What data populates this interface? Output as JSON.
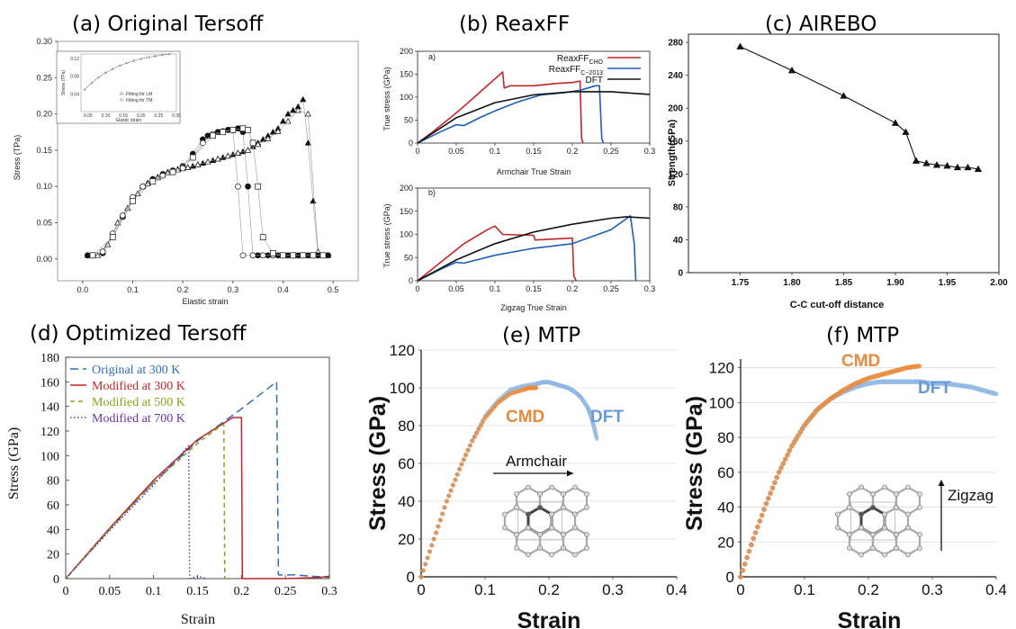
{
  "chart_data": [
    {
      "id": "a",
      "type": "scatter",
      "title": "(a) Original Tersoff",
      "xlabel": "Elastic strain",
      "ylabel": "Stress (TPa)",
      "xlim": [
        -0.05,
        0.55
      ],
      "ylim": [
        -0.03,
        0.3
      ],
      "xticks": [
        "0.0",
        "0.1",
        "0.2",
        "0.3",
        "0.4",
        "0.5"
      ],
      "yticks": [
        "0.00",
        "0.05",
        "0.10",
        "0.15",
        "0.20",
        "0.25",
        "0.30"
      ],
      "series": [
        {
          "marker": "filled-triangle",
          "x": [
            0.01,
            0.02,
            0.03,
            0.04,
            0.05,
            0.06,
            0.07,
            0.08,
            0.09,
            0.1,
            0.11,
            0.12,
            0.13,
            0.14,
            0.15,
            0.16,
            0.17,
            0.18,
            0.19,
            0.2,
            0.21,
            0.22,
            0.23,
            0.24,
            0.25,
            0.26,
            0.27,
            0.28,
            0.29,
            0.3,
            0.31,
            0.32,
            0.33,
            0.34,
            0.35,
            0.36,
            0.37,
            0.38,
            0.39,
            0.4,
            0.41,
            0.42,
            0.43,
            0.44,
            0.45,
            0.46,
            0.47,
            0.48,
            0.49
          ],
          "y": [
            0.005,
            0.005,
            0.005,
            0.01,
            0.02,
            0.035,
            0.05,
            0.06,
            0.07,
            0.08,
            0.09,
            0.1,
            0.105,
            0.11,
            0.113,
            0.116,
            0.12,
            0.122,
            0.124,
            0.125,
            0.126,
            0.128,
            0.13,
            0.132,
            0.134,
            0.136,
            0.138,
            0.14,
            0.142,
            0.144,
            0.146,
            0.148,
            0.15,
            0.155,
            0.16,
            0.165,
            0.17,
            0.175,
            0.18,
            0.19,
            0.2,
            0.205,
            0.21,
            0.22,
            0.16,
            0.08,
            0.005,
            0.005,
            0.005
          ]
        },
        {
          "marker": "open-triangle",
          "x": [
            0.01,
            0.03,
            0.05,
            0.07,
            0.09,
            0.11,
            0.13,
            0.15,
            0.17,
            0.19,
            0.21,
            0.23,
            0.25,
            0.27,
            0.29,
            0.31,
            0.33,
            0.35,
            0.37,
            0.39,
            0.41,
            0.43,
            0.45,
            0.47,
            0.49
          ],
          "y": [
            0.005,
            0.005,
            0.02,
            0.05,
            0.07,
            0.09,
            0.104,
            0.112,
            0.119,
            0.123,
            0.126,
            0.13,
            0.134,
            0.138,
            0.142,
            0.146,
            0.15,
            0.158,
            0.166,
            0.176,
            0.19,
            0.205,
            0.2,
            0.01,
            0.005
          ]
        },
        {
          "marker": "filled-circle",
          "x": [
            0.01,
            0.02,
            0.04,
            0.06,
            0.08,
            0.1,
            0.12,
            0.14,
            0.16,
            0.18,
            0.2,
            0.22,
            0.24,
            0.25,
            0.26,
            0.27,
            0.28,
            0.29,
            0.3,
            0.31,
            0.32,
            0.33,
            0.34,
            0.35,
            0.36,
            0.37,
            0.38,
            0.39,
            0.4,
            0.41,
            0.42,
            0.43,
            0.44,
            0.45,
            0.46,
            0.47,
            0.48,
            0.49
          ],
          "y": [
            0.005,
            0.005,
            0.008,
            0.03,
            0.058,
            0.082,
            0.1,
            0.11,
            0.117,
            0.122,
            0.128,
            0.145,
            0.165,
            0.17,
            0.172,
            0.175,
            0.176,
            0.178,
            0.178,
            0.18,
            0.175,
            0.1,
            0.005,
            0.005,
            0.005,
            0.005,
            0.005,
            0.005,
            0.005,
            0.005,
            0.005,
            0.005,
            0.005,
            0.005,
            0.005,
            0.005,
            0.005,
            0.005
          ]
        },
        {
          "marker": "open-circle",
          "x": [
            0.02,
            0.04,
            0.06,
            0.08,
            0.1,
            0.12,
            0.14,
            0.16,
            0.18,
            0.2,
            0.22,
            0.24,
            0.26,
            0.28,
            0.3,
            0.31,
            0.32,
            0.34,
            0.36,
            0.38,
            0.4,
            0.42,
            0.44,
            0.46,
            0.48
          ],
          "y": [
            0.005,
            0.01,
            0.035,
            0.06,
            0.085,
            0.1,
            0.108,
            0.115,
            0.12,
            0.125,
            0.14,
            0.16,
            0.172,
            0.176,
            0.178,
            0.1,
            0.005,
            0.005,
            0.005,
            0.005,
            0.005,
            0.005,
            0.005,
            0.005,
            0.005
          ]
        },
        {
          "marker": "open-square",
          "x": [
            0.02,
            0.06,
            0.1,
            0.14,
            0.18,
            0.22,
            0.26,
            0.28,
            0.3,
            0.32,
            0.33,
            0.34,
            0.35,
            0.36,
            0.38,
            0.4,
            0.42,
            0.44,
            0.46,
            0.48
          ],
          "y": [
            0.005,
            0.03,
            0.08,
            0.107,
            0.12,
            0.14,
            0.17,
            0.175,
            0.178,
            0.18,
            0.178,
            0.16,
            0.1,
            0.03,
            0.008,
            0.005,
            0.005,
            0.005,
            0.005,
            0.005
          ]
        }
      ],
      "inset": {
        "xlabel": "Elastic strain",
        "ylabel": "Stress (TPa)",
        "xticks": [
          "0.05",
          "0.10",
          "0.15",
          "0.20",
          "0.25",
          "0.30"
        ],
        "yticks": [
          "0.04",
          "0.08",
          "0.12"
        ],
        "legend": [
          "Fitting for LM",
          "Fitting for TM"
        ]
      }
    },
    {
      "id": "b1",
      "type": "line",
      "title": "(b) ReaxFF",
      "panel_label": "a)",
      "xlabel": "Armchair True Strain",
      "ylabel": "True stress (GPa)",
      "xlim": [
        0,
        0.3
      ],
      "ylim": [
        0,
        200
      ],
      "xticks": [
        "0",
        "0.05",
        "0.1",
        "0.15",
        "0.2",
        "0.25",
        "0.3"
      ],
      "yticks": [
        "0",
        "50",
        "100",
        "150",
        "200"
      ],
      "legend": [
        "ReaxFF",
        "ReaxFF",
        "DFT"
      ],
      "legend_sub": [
        "CHO",
        "C−2013",
        ""
      ],
      "series": [
        {
          "color": "#c0262b",
          "x": [
            0,
            0.02,
            0.04,
            0.06,
            0.08,
            0.1,
            0.11,
            0.112,
            0.12,
            0.15,
            0.18,
            0.2,
            0.21,
            0.212,
            0.214
          ],
          "y": [
            0,
            25,
            52,
            80,
            110,
            140,
            155,
            120,
            125,
            125,
            130,
            132,
            135,
            10,
            0
          ]
        },
        {
          "color": "#1f5fb3",
          "x": [
            0,
            0.03,
            0.05,
            0.06,
            0.08,
            0.1,
            0.13,
            0.16,
            0.19,
            0.21,
            0.23,
            0.235,
            0.238,
            0.24
          ],
          "y": [
            0,
            25,
            40,
            38,
            55,
            70,
            90,
            105,
            110,
            115,
            125,
            125,
            10,
            0
          ]
        },
        {
          "color": "#111111",
          "x": [
            0,
            0.05,
            0.1,
            0.15,
            0.2,
            0.25,
            0.3
          ],
          "y": [
            0,
            55,
            88,
            105,
            112,
            112,
            106
          ]
        }
      ]
    },
    {
      "id": "b2",
      "type": "line",
      "panel_label": "b)",
      "xlabel": "Zigzag True Strain",
      "ylabel": "True stress (GPa)",
      "xlim": [
        0,
        0.3
      ],
      "ylim": [
        0,
        200
      ],
      "xticks": [
        "0",
        "0.05",
        "0.1",
        "0.15",
        "0.2",
        "0.25",
        "0.3"
      ],
      "yticks": [
        "0",
        "50",
        "100",
        "150",
        "200"
      ],
      "series": [
        {
          "color": "#c0262b",
          "x": [
            0,
            0.03,
            0.06,
            0.09,
            0.1,
            0.11,
            0.15,
            0.152,
            0.2,
            0.202,
            0.205
          ],
          "y": [
            0,
            40,
            80,
            110,
            118,
            100,
            98,
            88,
            92,
            10,
            0
          ]
        },
        {
          "color": "#1f5fb3",
          "x": [
            0,
            0.03,
            0.05,
            0.06,
            0.1,
            0.15,
            0.2,
            0.25,
            0.275,
            0.28,
            0.282
          ],
          "y": [
            0,
            25,
            40,
            38,
            55,
            70,
            80,
            110,
            140,
            80,
            0
          ]
        },
        {
          "color": "#111111",
          "x": [
            0,
            0.05,
            0.1,
            0.15,
            0.2,
            0.25,
            0.27,
            0.3
          ],
          "y": [
            0,
            45,
            80,
            105,
            122,
            135,
            138,
            135
          ]
        }
      ]
    },
    {
      "id": "c",
      "type": "line",
      "title": "(c) AIREBO",
      "xlabel": "C-C cut-off distance",
      "ylabel": "Strength(GPa)",
      "xlim": [
        1.7,
        2.0
      ],
      "ylim": [
        0,
        290
      ],
      "xticks": [
        "1.75",
        "1.80",
        "1.85",
        "1.90",
        "1.95",
        "2.00"
      ],
      "yticks": [
        "0",
        "40",
        "80",
        "120",
        "160",
        "200",
        "240",
        "280"
      ],
      "series": [
        {
          "color": "#111111",
          "marker": "triangle",
          "x": [
            1.75,
            1.8,
            1.85,
            1.9,
            1.91,
            1.92,
            1.93,
            1.94,
            1.95,
            1.96,
            1.97,
            1.98
          ],
          "y": [
            275,
            246,
            215,
            182,
            171,
            136,
            133,
            131,
            130,
            128,
            128,
            126
          ]
        }
      ]
    },
    {
      "id": "d",
      "type": "line",
      "title": "(d) Optimized Tersoff",
      "xlabel": "Strain",
      "ylabel": "Stress (GPa)",
      "xlim": [
        0,
        0.3
      ],
      "ylim": [
        0,
        180
      ],
      "xticks": [
        "0",
        "0.05",
        "0.1",
        "0.15",
        "0.2",
        "0.25",
        "0.3"
      ],
      "yticks": [
        "0",
        "20",
        "40",
        "60",
        "80",
        "100",
        "120",
        "140",
        "160",
        "180"
      ],
      "series": [
        {
          "name": "Original at 300 K",
          "color": "#2f6fb3",
          "dash": "9,5",
          "x": [
            0,
            0.05,
            0.1,
            0.15,
            0.2,
            0.24,
            0.242,
            0.26,
            0.28,
            0.3
          ],
          "y": [
            0,
            40,
            78,
            112,
            138,
            160,
            3,
            3,
            2,
            1
          ]
        },
        {
          "name": "Modified at 300 K",
          "color": "#c0262b",
          "dash": "",
          "x": [
            0,
            0.05,
            0.1,
            0.15,
            0.19,
            0.2,
            0.201,
            0.25,
            0.29,
            0.3
          ],
          "y": [
            0,
            41,
            80,
            113,
            131,
            131,
            0,
            0,
            1,
            2
          ]
        },
        {
          "name": "Modified at 500 K",
          "color": "#8aa31c",
          "dash": "5,4",
          "x": [
            0,
            0.05,
            0.1,
            0.15,
            0.178,
            0.18,
            0.181
          ],
          "y": [
            0,
            40,
            78,
            110,
            125,
            125,
            0
          ]
        },
        {
          "name": "Modified at 700 K",
          "color": "#6a35a3",
          "dash": "1.5,2.5",
          "x": [
            0,
            0.05,
            0.1,
            0.14,
            0.141,
            0.142,
            0.15,
            0.16
          ],
          "y": [
            0,
            39,
            76,
            108,
            4,
            0,
            2,
            0
          ]
        }
      ]
    },
    {
      "id": "e",
      "type": "scatter",
      "title": "(e) MTP",
      "xlabel": "Strain",
      "ylabel": "Stress (GPa)",
      "xlim": [
        0,
        0.4
      ],
      "ylim": [
        0,
        120
      ],
      "xticks": [
        "0",
        "0.1",
        "0.2",
        "0.3",
        "0.4"
      ],
      "yticks": [
        "0",
        "20",
        "40",
        "60",
        "80",
        "100",
        "120"
      ],
      "annotations": [
        "CMD",
        "DFT",
        "Armchair"
      ],
      "series": [
        {
          "name": "CMD",
          "color": "#e8893b",
          "x": [
            0,
            0.02,
            0.04,
            0.06,
            0.08,
            0.1,
            0.12,
            0.14,
            0.16,
            0.17,
            0.175,
            0.18
          ],
          "y": [
            0,
            20,
            40,
            57,
            72,
            84,
            92,
            97,
            99,
            100,
            100,
            100
          ]
        },
        {
          "name": "DFT",
          "color": "#8fb7e3",
          "x": [
            0,
            0.02,
            0.04,
            0.06,
            0.08,
            0.1,
            0.12,
            0.14,
            0.16,
            0.18,
            0.19,
            0.2,
            0.21,
            0.22,
            0.23,
            0.24,
            0.25,
            0.26,
            0.265,
            0.27,
            0.275
          ],
          "y": [
            0,
            20,
            40,
            57,
            72,
            85,
            93,
            99,
            101,
            102,
            103,
            103,
            102,
            101,
            100,
            98,
            95,
            90,
            86,
            80,
            73
          ]
        }
      ]
    },
    {
      "id": "f",
      "type": "scatter",
      "title": "(f) MTP",
      "xlabel": "Strain",
      "ylabel": "Stress (GPa)",
      "xlim": [
        0,
        0.4
      ],
      "ylim": [
        0,
        125
      ],
      "xticks": [
        "0",
        "0.1",
        "0.2",
        "0.3",
        "0.4"
      ],
      "yticks": [
        "0",
        "20",
        "40",
        "60",
        "80",
        "100",
        "120"
      ],
      "annotations": [
        "CMD",
        "DFT",
        "Zigzag"
      ],
      "series": [
        {
          "name": "CMD",
          "color": "#e8893b",
          "x": [
            0,
            0.02,
            0.04,
            0.06,
            0.08,
            0.1,
            0.12,
            0.14,
            0.16,
            0.18,
            0.2,
            0.22,
            0.24,
            0.26,
            0.28
          ],
          "y": [
            0,
            22,
            42,
            60,
            75,
            87,
            96,
            102,
            107,
            111,
            114,
            116,
            118,
            120,
            121
          ]
        },
        {
          "name": "DFT",
          "color": "#8fb7e3",
          "x": [
            0,
            0.02,
            0.04,
            0.06,
            0.08,
            0.1,
            0.12,
            0.14,
            0.16,
            0.18,
            0.2,
            0.22,
            0.24,
            0.26,
            0.28,
            0.3,
            0.32,
            0.34,
            0.36,
            0.38,
            0.4
          ],
          "y": [
            0,
            22,
            42,
            60,
            75,
            87,
            96,
            102,
            106,
            109,
            111,
            112,
            112,
            112,
            112,
            111,
            111,
            110,
            109,
            107,
            105
          ]
        }
      ]
    }
  ]
}
